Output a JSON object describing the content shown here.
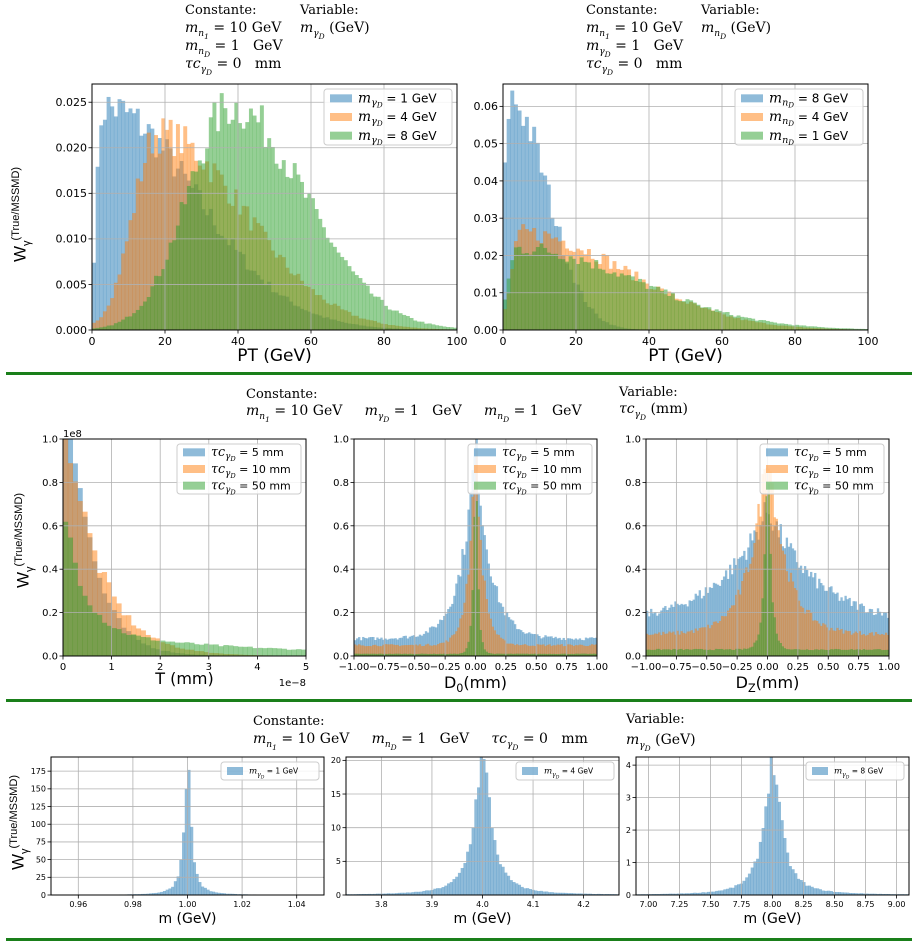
{
  "sections": [
    {
      "info_blocks": [
        {
          "constante_label": "Constante:",
          "constante_lines": [
            "m_{n_1} = 10 GeV",
            "m_{n_D} = 1   GeV",
            "τc_{γ_D} = 0   mm"
          ],
          "variable_label": "Variable:",
          "variable_lines": [
            "m_{γ_D} (GeV)"
          ]
        },
        {
          "constante_label": "Constante:",
          "constante_lines": [
            "m_{n_1} = 10 GeV",
            "m_{γ_D} = 1   GeV",
            "τc_{γ_D} = 0   mm"
          ],
          "variable_label": "Variable:",
          "variable_lines": [
            "m_{n_D} (GeV)"
          ]
        }
      ],
      "ylabel": "W_γ^(True/MSSMD)"
    },
    {
      "info_blocks": [
        {
          "constante_label": "Constante:",
          "constante_lines": [
            "m_{n_1} = 10 GeV     m_{γ_D} = 1   GeV     m_{n_D} = 1   GeV"
          ],
          "variable_label": "Variable:",
          "variable_lines": [
            "τc_{γ_D} (mm)"
          ]
        }
      ],
      "ylabel": "W_γ^(True/MSSMD)"
    },
    {
      "info_blocks": [
        {
          "constante_label": "Constante:",
          "constante_lines": [
            "m_{n_1} = 10 GeV     m_{n_D} = 1   GeV     τc_{γ_D} = 0   mm"
          ],
          "variable_label": "Variable:",
          "variable_lines": [
            "m_{γ_D} (GeV)"
          ]
        }
      ],
      "ylabel": "W_γ^(True/MSSMD)"
    }
  ],
  "colors": {
    "blue": "#1f77b4",
    "orange": "#ff7f0e",
    "green": "#2ca02c",
    "separator": "#1a7f1a"
  },
  "chart_data": [
    {
      "type": "bar",
      "id": "pt_mgamma",
      "xlabel": "PT (GeV)",
      "ylabel": "",
      "xlim": [
        0,
        100
      ],
      "ylim": [
        0,
        0.027
      ],
      "xticks": [
        0,
        20,
        40,
        60,
        80,
        100
      ],
      "yticks": [
        0.0,
        0.005,
        0.01,
        0.015,
        0.02,
        0.025
      ],
      "ytick_format": "3",
      "grid": true,
      "legend": "top-right",
      "bins": 100,
      "series": [
        {
          "name": "m_{γ_D} = 1 GeV",
          "color": "blue",
          "profile": "peak",
          "peak_x": 3,
          "peak_y": 0.0245,
          "width_left": 2,
          "width_right": 30
        },
        {
          "name": "m_{γ_D} = 4 GeV",
          "color": "orange",
          "profile": "peak",
          "peak_x": 18,
          "peak_y": 0.0215,
          "width_left": 8,
          "width_right": 28
        },
        {
          "name": "m_{γ_D} = 8 GeV",
          "color": "green",
          "profile": "peak",
          "peak_x": 38,
          "peak_y": 0.0245,
          "width_left": 14,
          "width_right": 24
        }
      ]
    },
    {
      "type": "bar",
      "id": "pt_mn",
      "xlabel": "PT (GeV)",
      "ylabel": "",
      "xlim": [
        0,
        100
      ],
      "ylim": [
        0,
        0.066
      ],
      "xticks": [
        0,
        20,
        40,
        60,
        80,
        100
      ],
      "yticks": [
        0.0,
        0.01,
        0.02,
        0.03,
        0.04,
        0.05,
        0.06
      ],
      "ytick_format": "2",
      "grid": true,
      "legend": "top-right",
      "bins": 100,
      "series": [
        {
          "name": "m_{n_D} = 8 GeV",
          "color": "blue",
          "profile": "peak",
          "peak_x": 2,
          "peak_y": 0.062,
          "width_left": 2,
          "width_right": 12
        },
        {
          "name": "m_{n_D} = 4 GeV",
          "color": "orange",
          "profile": "peak",
          "peak_x": 5,
          "peak_y": 0.026,
          "width_left": 3,
          "width_right": 34
        },
        {
          "name": "m_{n_D} = 1 GeV",
          "color": "green",
          "profile": "peak",
          "peak_x": 4,
          "peak_y": 0.022,
          "width_left": 3,
          "width_right": 38
        }
      ]
    },
    {
      "type": "bar",
      "id": "T",
      "xlabel": "T (mm)",
      "ylabel": "",
      "xlim": [
        0,
        5
      ],
      "ylim": [
        0,
        1.0
      ],
      "xticks": [
        0,
        1,
        2,
        3,
        4,
        5
      ],
      "yticks": [
        0.0,
        0.2,
        0.4,
        0.6,
        0.8,
        1.0
      ],
      "ytick_format": "1",
      "grid": true,
      "legend": "top-right",
      "y_multiplier": "1e8",
      "x_multiplier": "1e−8",
      "bins": 50,
      "series": [
        {
          "name": "τc_{γ_D} = 5 mm",
          "color": "blue",
          "profile": "exp",
          "peak_y": 1.6,
          "tau": 0.5
        },
        {
          "name": "τc_{γ_D} = 10 mm",
          "color": "orange",
          "profile": "exp",
          "peak_y": 1.2,
          "tau": 0.7
        },
        {
          "name": "τc_{γ_D} = 50 mm",
          "color": "green",
          "profile": "exp2",
          "peak_y": 0.6,
          "tau": 0.4,
          "tail": 0.12,
          "tail_tau": 3.5
        }
      ]
    },
    {
      "type": "bar",
      "id": "D0",
      "xlabel": "D_0(mm)",
      "ylabel": "",
      "xlim": [
        -1,
        1
      ],
      "ylim": [
        0,
        1.0
      ],
      "xticks": [
        -1.0,
        -0.75,
        -0.5,
        -0.25,
        0.0,
        0.25,
        0.5,
        0.75,
        1.0
      ],
      "yticks": [
        0.0,
        0.2,
        0.4,
        0.6,
        0.8,
        1.0
      ],
      "ytick_format": "1",
      "grid": true,
      "legend": "top-right",
      "bins": 120,
      "series": [
        {
          "name": "τc_{γ_D} = 5 mm",
          "color": "blue",
          "profile": "cusp",
          "peak_y": 1.0,
          "base": 0.08,
          "width": 0.12
        },
        {
          "name": "τc_{γ_D} = 10 mm",
          "color": "orange",
          "profile": "cusp",
          "peak_y": 1.0,
          "base": 0.05,
          "width": 0.06
        },
        {
          "name": "τc_{γ_D} = 50 mm",
          "color": "green",
          "profile": "cusp",
          "peak_y": 1.0,
          "base": 0.01,
          "width": 0.02
        }
      ]
    },
    {
      "type": "bar",
      "id": "DZ",
      "xlabel": "D_Z(mm)",
      "ylabel": "",
      "xlim": [
        -1,
        1
      ],
      "ylim": [
        0,
        1.0
      ],
      "xticks": [
        -1.0,
        -0.75,
        -0.5,
        -0.25,
        0.0,
        0.25,
        0.5,
        0.75,
        1.0
      ],
      "yticks": [
        0.0,
        0.2,
        0.4,
        0.6,
        0.8,
        1.0
      ],
      "ytick_format": "1",
      "grid": true,
      "legend": "top-right",
      "bins": 120,
      "series": [
        {
          "name": "τc_{γ_D} = 5 mm",
          "color": "blue",
          "profile": "cusp",
          "peak_y": 0.68,
          "base": 0.15,
          "width": 0.4
        },
        {
          "name": "τc_{γ_D} = 10 mm",
          "color": "orange",
          "profile": "cusp",
          "peak_y": 1.0,
          "base": 0.1,
          "width": 0.15
        },
        {
          "name": "τc_{γ_D} = 50 mm",
          "color": "green",
          "profile": "cusp",
          "peak_y": 1.0,
          "base": 0.03,
          "width": 0.03
        }
      ]
    },
    {
      "type": "bar",
      "id": "m1",
      "xlabel": "m (GeV)",
      "ylabel": "",
      "xlim": [
        0.95,
        1.05
      ],
      "ylim": [
        0,
        195
      ],
      "xticks": [
        0.96,
        0.98,
        1.0,
        1.02,
        1.04
      ],
      "yticks": [
        0,
        25,
        50,
        75,
        100,
        125,
        150,
        175
      ],
      "ytick_format": "0",
      "xtick_format": "2",
      "grid": true,
      "legend": "top-right",
      "bins": 100,
      "series": [
        {
          "name": "m_{γ_D} = 1 GeV",
          "color": "blue",
          "profile": "sharp",
          "center": 1.0,
          "peak_y": 185,
          "width": 0.0015
        }
      ]
    },
    {
      "type": "bar",
      "id": "m4",
      "xlabel": "m (GeV)",
      "ylabel": "",
      "xlim": [
        3.73,
        4.27
      ],
      "ylim": [
        0,
        20.5
      ],
      "xticks": [
        3.8,
        3.9,
        4.0,
        4.1,
        4.2
      ],
      "yticks": [
        0,
        5,
        10,
        15,
        20
      ],
      "ytick_format": "0",
      "xtick_format": "1",
      "grid": true,
      "legend": "top-right",
      "bins": 100,
      "series": [
        {
          "name": "m_{γ_D} = 4 GeV",
          "color": "blue",
          "profile": "sharp",
          "center": 4.0,
          "peak_y": 20,
          "width": 0.02
        }
      ]
    },
    {
      "type": "bar",
      "id": "m8",
      "xlabel": "m (GeV)",
      "ylabel": "",
      "xlim": [
        6.9,
        9.1
      ],
      "ylim": [
        0,
        4.25
      ],
      "xticks": [
        7.0,
        7.25,
        7.5,
        7.75,
        8.0,
        8.25,
        8.5,
        8.75,
        9.0
      ],
      "yticks": [
        0,
        1,
        2,
        3,
        4
      ],
      "ytick_format": "0",
      "xtick_format": "2",
      "grid": true,
      "legend": "top-right",
      "bins": 100,
      "series": [
        {
          "name": "m_{γ_D} = 8 GeV",
          "color": "blue",
          "profile": "sharp",
          "center": 8.0,
          "peak_y": 4.05,
          "width": 0.08
        }
      ]
    }
  ]
}
